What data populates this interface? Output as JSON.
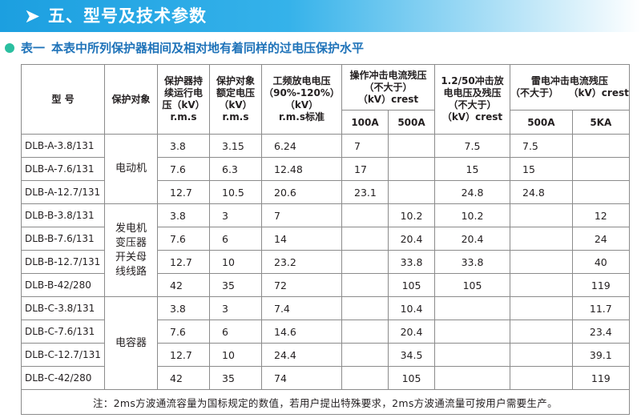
{
  "section": {
    "arrow_icon": "chevron-right-icon",
    "title": "五、型号及技术参数"
  },
  "table_caption": {
    "label": "表一",
    "text": "本表中所列保护器相间及相对地有着同样的过电压保护水平"
  },
  "headers": {
    "model": "型  号",
    "object": "保护对象",
    "mcov": [
      "保护器持",
      "续运行电",
      "压（kV）",
      "r.m.s"
    ],
    "rated": [
      "保护对象",
      "额定电压",
      "（kV）",
      "r.m.s"
    ],
    "pf": [
      "工频放电电压",
      "（90%-120%）",
      "（kV）",
      "r.m.s标准"
    ],
    "switching": [
      "操作冲击电流残压",
      "（不大于）",
      "（kV）crest"
    ],
    "switching_100a": "100A",
    "switching_500a": "500A",
    "impulse": [
      "1.2/50冲击放",
      "电电压及残压",
      "（不大于）",
      "（kV）crest"
    ],
    "lightning": [
      "雷电冲击电流残压",
      "（不大于）   （kV）crest"
    ],
    "lightning_500a": "500A",
    "lightning_5ka": "5KA"
  },
  "groups": [
    {
      "object_lines": [
        "电动机"
      ],
      "rows": [
        {
          "model": "DLB-A-3.8/131",
          "mcov": "3.8",
          "rated": "3.15",
          "pf": "6.24",
          "s100": "7",
          "s500": "",
          "imp": "7.5",
          "l500": "7.5",
          "l5k": ""
        },
        {
          "model": "DLB-A-7.6/131",
          "mcov": "7.6",
          "rated": "6.3",
          "pf": "12.48",
          "s100": "17",
          "s500": "",
          "imp": "15",
          "l500": "15",
          "l5k": ""
        },
        {
          "model": "DLB-A-12.7/131",
          "mcov": "12.7",
          "rated": "10.5",
          "pf": "20.6",
          "s100": "23.1",
          "s500": "",
          "imp": "24.8",
          "l500": "24.8",
          "l5k": ""
        }
      ]
    },
    {
      "object_lines": [
        "发电机",
        "变压器",
        "开关母",
        "线线路"
      ],
      "rows": [
        {
          "model": "DLB-B-3.8/131",
          "mcov": "3.8",
          "rated": "3",
          "pf": "7",
          "s100": "",
          "s500": "10.2",
          "imp": "10.2",
          "l500": "",
          "l5k": "12"
        },
        {
          "model": "DLB-B-7.6/131",
          "mcov": "7.6",
          "rated": "6",
          "pf": "14",
          "s100": "",
          "s500": "20.4",
          "imp": "20.4",
          "l500": "",
          "l5k": "24"
        },
        {
          "model": "DLB-B-12.7/131",
          "mcov": "12.7",
          "rated": "10",
          "pf": "23.2",
          "s100": "",
          "s500": "33.8",
          "imp": "33.8",
          "l500": "",
          "l5k": "40"
        },
        {
          "model": "DLB-B-42/280",
          "mcov": "42",
          "rated": "35",
          "pf": "72",
          "s100": "",
          "s500": "105",
          "imp": "105",
          "l500": "",
          "l5k": "119"
        }
      ]
    },
    {
      "object_lines": [
        "电容器"
      ],
      "rows": [
        {
          "model": "DLB-C-3.8/131",
          "mcov": "3.8",
          "rated": "3",
          "pf": "7.4",
          "s100": "",
          "s500": "10.4",
          "imp": "",
          "l500": "",
          "l5k": "11.7"
        },
        {
          "model": "DLB-C-7.6/131",
          "mcov": "7.6",
          "rated": "6",
          "pf": "14.6",
          "s100": "",
          "s500": "20.4",
          "imp": "",
          "l500": "",
          "l5k": "23.4"
        },
        {
          "model": "DLB-C-12.7/131",
          "mcov": "12.7",
          "rated": "10",
          "pf": "24.4",
          "s100": "",
          "s500": "34.5",
          "imp": "",
          "l500": "",
          "l5k": "39.1"
        },
        {
          "model": "DLB-C-42/280",
          "mcov": "42",
          "rated": "35",
          "pf": "74",
          "s100": "",
          "s500": "105",
          "imp": "",
          "l500": "",
          "l5k": "119"
        }
      ]
    }
  ],
  "footnote": "注：2ms方波通流容量为国标规定的数值，若用户提出特殊要求，2ms方波通流量可按用户需要生产。"
}
